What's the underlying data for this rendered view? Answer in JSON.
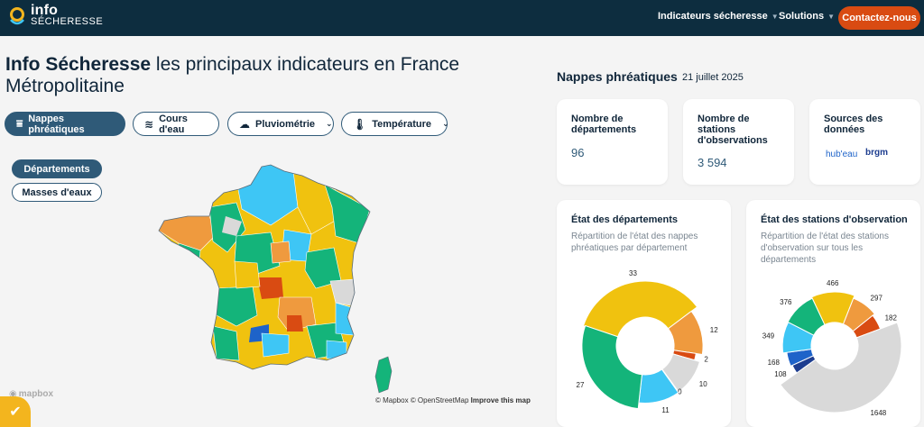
{
  "header": {
    "logo_line1": "info",
    "logo_line2": "SÉCHERESSE",
    "nav": [
      {
        "label": "Indicateurs sécheresse"
      },
      {
        "label": "Solutions"
      }
    ],
    "contact_label": "Contactez-nous"
  },
  "page": {
    "title_bold": "Info Sécheresse",
    "title_rest": " les principaux indicateurs en France Métropolitaine"
  },
  "tabs": [
    {
      "label": "Nappes phréatiques",
      "icon": "groundwater-icon",
      "active": true
    },
    {
      "label": "Cours d'eau",
      "icon": "waves-icon",
      "active": false
    },
    {
      "label": "Pluviométrie",
      "icon": "rain-cloud-icon",
      "active": false
    },
    {
      "label": "Température",
      "icon": "thermometer-icon",
      "active": false
    }
  ],
  "map_toggle": {
    "departements": "Départements",
    "masses": "Masses d'eaux"
  },
  "map": {
    "attribution_mapbox": "© Mapbox",
    "attribution_osm": "© OpenStreetMap",
    "improve": "Improve this map",
    "logo": "mapbox"
  },
  "panel": {
    "section_title": "Nappes phréatiques",
    "date": "21 juillet 2025",
    "kpi": [
      {
        "title": "Nombre de départements",
        "value": "96"
      },
      {
        "title": "Nombre de stations d'observations",
        "value": "3 594"
      },
      {
        "title": "Sources des données",
        "sources": [
          "hub'eau",
          "brgm"
        ]
      }
    ],
    "dept_card": {
      "title": "État des départements",
      "subtitle": "Répartition de l'état des nappes phréatiques par département"
    },
    "station_card": {
      "title": "État des stations d'observation",
      "subtitle": "Répartition de l'état des stations d'observation sur tous les départements"
    }
  },
  "colors": {
    "very_low": "#d94b12",
    "low": "#ef9a3e",
    "moderately_low": "#f0c20f",
    "normal": "#14b47a",
    "moderately_high": "#3ec6f5",
    "high": "#1e63c9",
    "very_high": "#1d3d8f",
    "no_data": "#d9d9d9",
    "header_bg": "#0d2d3f",
    "accent": "#d94b12"
  },
  "chart_data": [
    {
      "type": "pie",
      "title": "État des départements",
      "labels": [
        "moderately_low",
        "low",
        "very_low",
        "no_data",
        "very_high",
        "moderately_high",
        "normal"
      ],
      "values": [
        33,
        12,
        2,
        10,
        0,
        11,
        27
      ],
      "colors": [
        "#f0c20f",
        "#ef9a3e",
        "#d94b12",
        "#d9d9d9",
        "#1d3d8f",
        "#3ec6f5",
        "#14b47a"
      ]
    },
    {
      "type": "pie",
      "title": "État des stations d'observation",
      "labels": [
        "moderately_low",
        "low",
        "very_low",
        "no_data",
        "very_high",
        "high",
        "moderately_high",
        "normal"
      ],
      "values": [
        466,
        297,
        182,
        1648,
        108,
        168,
        349,
        376
      ],
      "colors": [
        "#f0c20f",
        "#ef9a3e",
        "#d94b12",
        "#d9d9d9",
        "#1d3d8f",
        "#1e63c9",
        "#3ec6f5",
        "#14b47a"
      ]
    }
  ]
}
